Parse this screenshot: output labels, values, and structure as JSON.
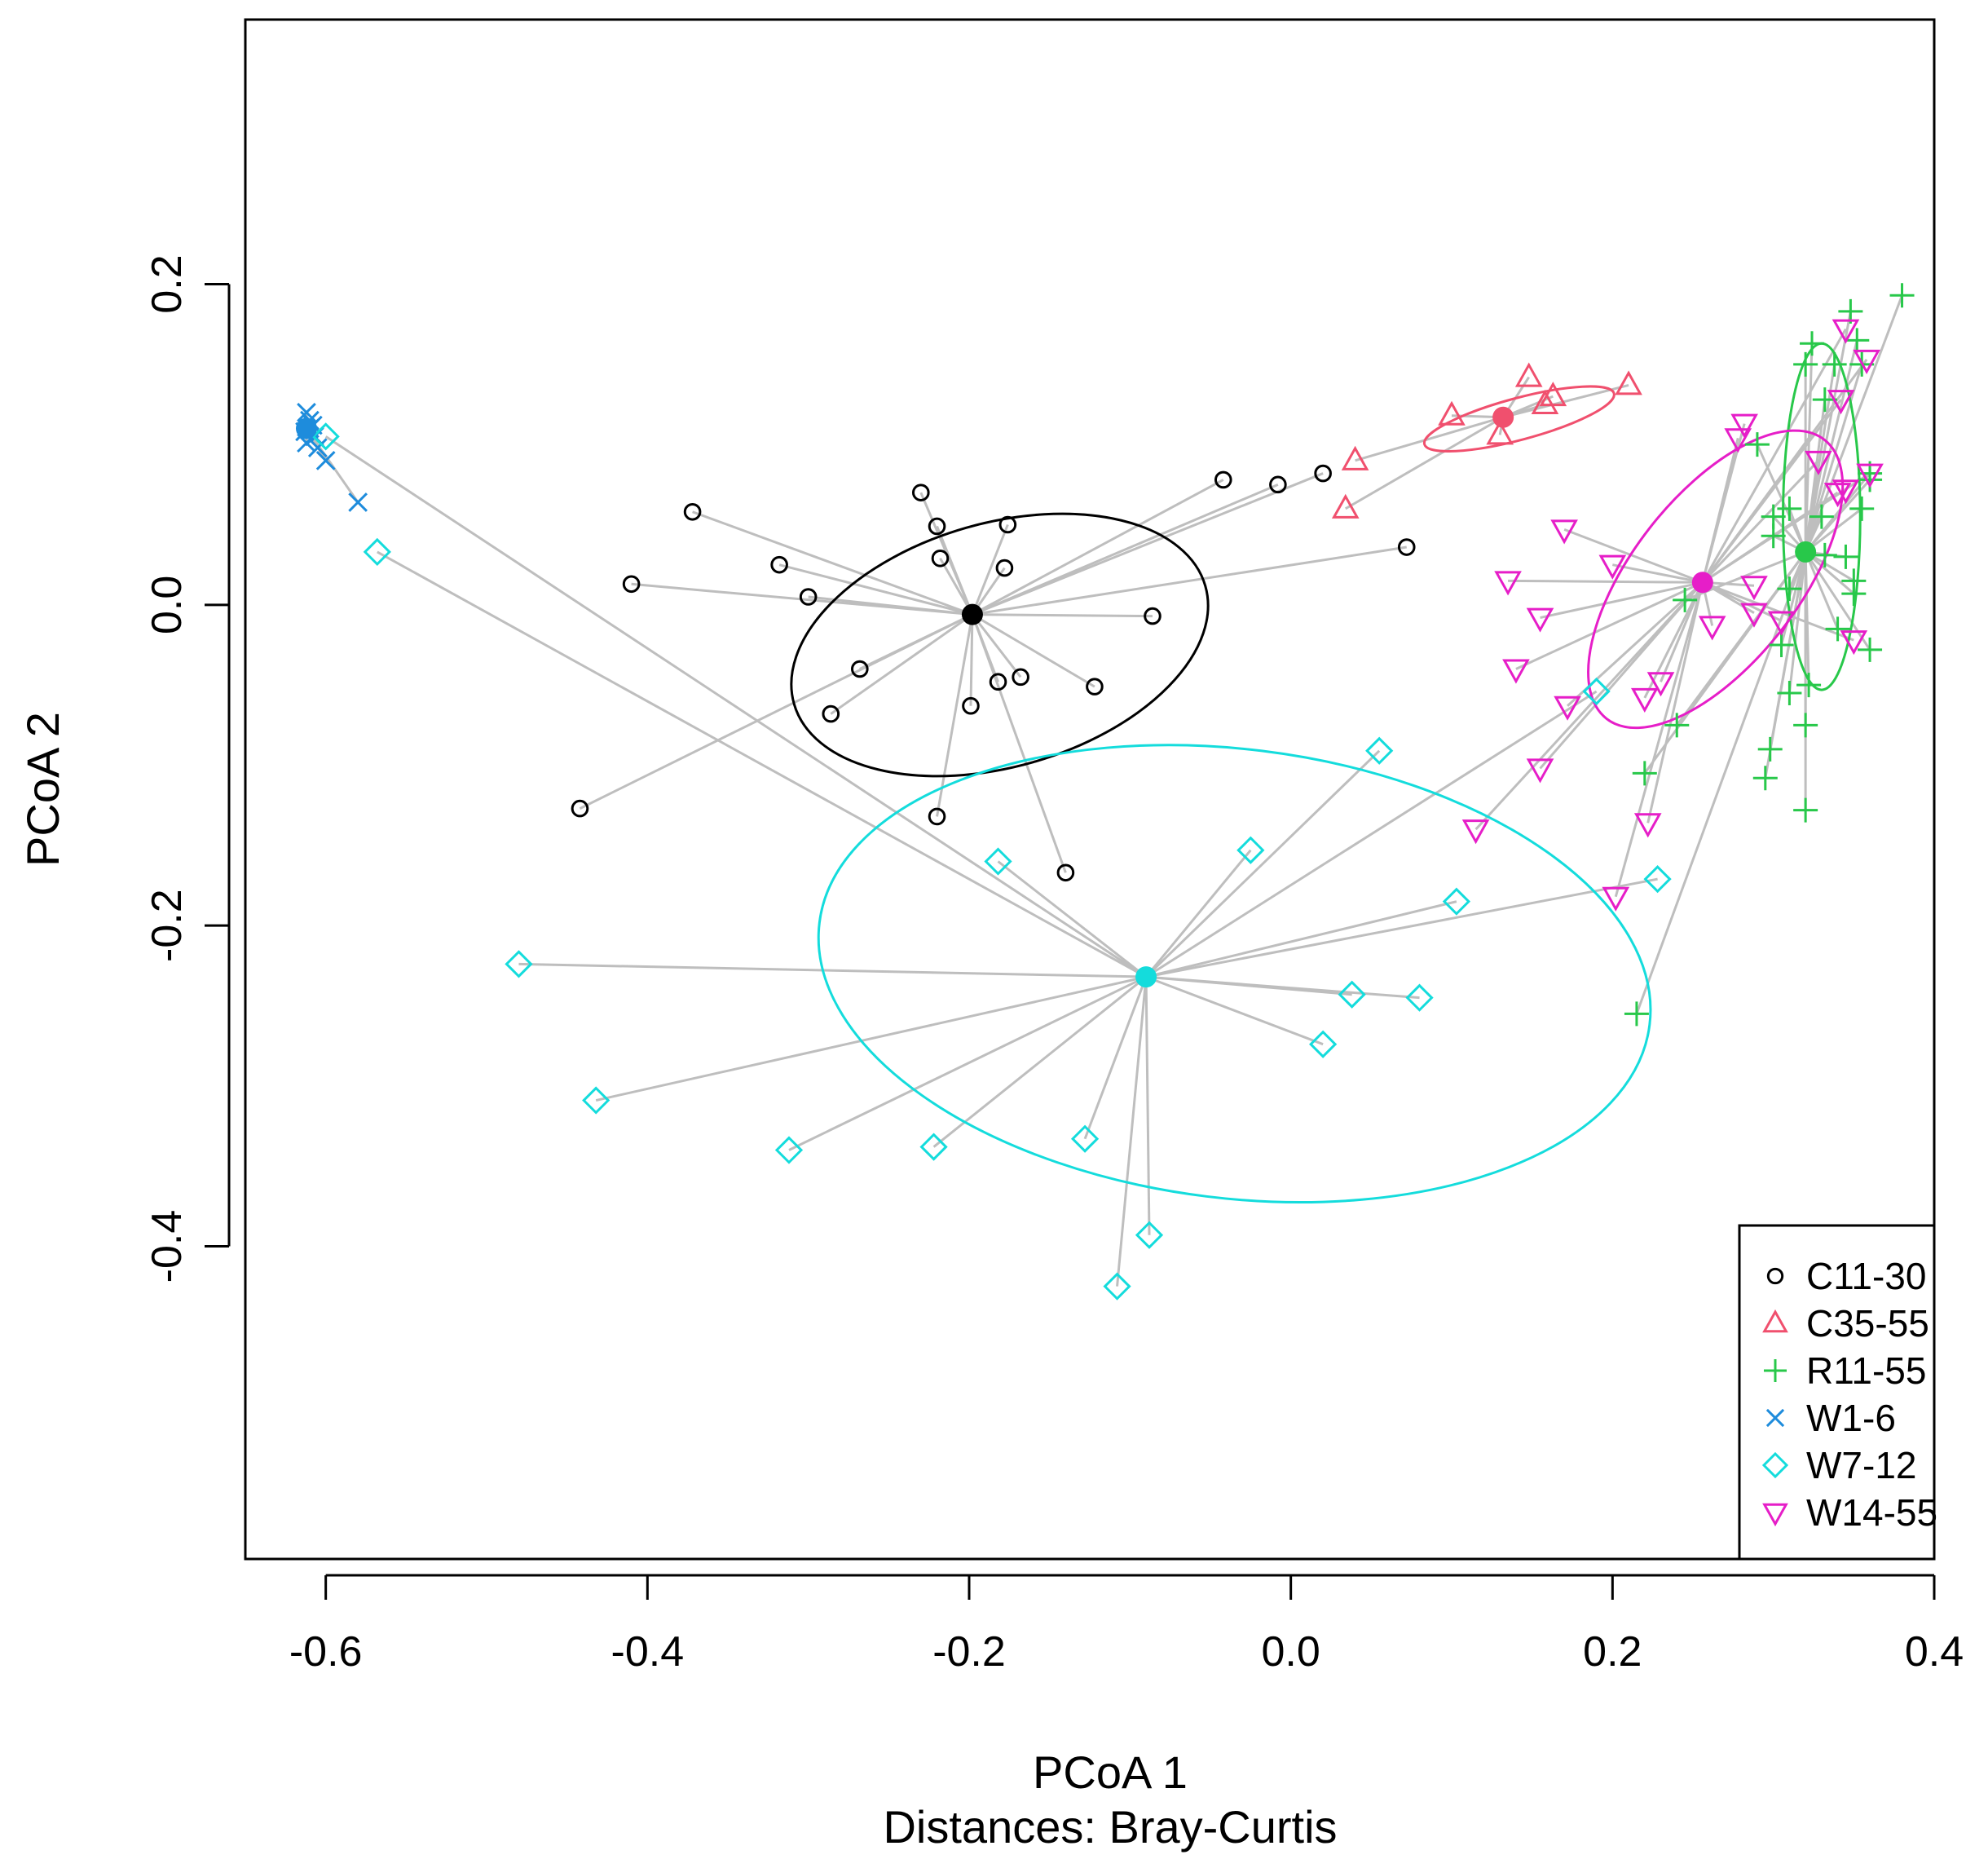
{
  "chart_data": {
    "type": "scatter",
    "subtype": "pcoa-betadisper",
    "xlabel": "PCoA 1",
    "subtitle": "Distances: Bray-Curtis",
    "ylabel": "PCoA 2",
    "xlim": [
      -0.65,
      0.4
    ],
    "ylim": [
      -0.595,
      0.365
    ],
    "x_ticks": [
      -0.6,
      -0.4,
      -0.2,
      0.0,
      0.2,
      0.4
    ],
    "x_tick_labels": [
      "-0.6",
      "-0.4",
      "-0.2",
      "0.0",
      "0.2",
      "0.4"
    ],
    "y_ticks": [
      -0.4,
      -0.2,
      0.0,
      0.2
    ],
    "y_tick_labels": [
      "-0.4",
      "-0.2",
      "0.0",
      "0.2"
    ],
    "grid": false,
    "legend_position": "bottom-right",
    "spider_color": "#bebebe",
    "series": [
      {
        "name": "C11-30",
        "shape": "circle",
        "color": "#000000",
        "centroid": [
          -0.198,
          -0.006
        ],
        "ellipse": {
          "cx": -0.181,
          "cy": -0.025,
          "rx": 0.133,
          "ry": 0.076,
          "angle": 16
        },
        "points": [
          [
            -0.372,
            0.058
          ],
          [
            -0.41,
            0.013
          ],
          [
            -0.3,
            0.005
          ],
          [
            -0.318,
            0.025
          ],
          [
            -0.23,
            0.07
          ],
          [
            -0.22,
            0.049
          ],
          [
            -0.218,
            0.029
          ],
          [
            -0.176,
            0.05
          ],
          [
            -0.178,
            0.023
          ],
          [
            -0.268,
            -0.04
          ],
          [
            -0.286,
            -0.068
          ],
          [
            -0.199,
            -0.063
          ],
          [
            -0.182,
            -0.048
          ],
          [
            -0.168,
            -0.045
          ],
          [
            -0.122,
            -0.051
          ],
          [
            -0.086,
            -0.007
          ],
          [
            -0.042,
            0.078
          ],
          [
            -0.008,
            0.075
          ],
          [
            0.02,
            0.082
          ],
          [
            0.072,
            0.036
          ],
          [
            -0.442,
            -0.127
          ],
          [
            -0.22,
            -0.132
          ],
          [
            -0.14,
            -0.167
          ]
        ]
      },
      {
        "name": "C35-55",
        "shape": "triangle",
        "color": "#f0506e",
        "centroid": [
          0.132,
          0.117
        ],
        "ellipse": {
          "cx": 0.142,
          "cy": 0.116,
          "rx": 0.061,
          "ry": 0.013,
          "angle": 15
        },
        "points": [
          [
            0.1,
            0.118
          ],
          [
            0.148,
            0.142
          ],
          [
            0.163,
            0.13
          ],
          [
            0.158,
            0.125
          ],
          [
            0.21,
            0.137
          ],
          [
            0.13,
            0.106
          ],
          [
            0.04,
            0.09
          ],
          [
            0.034,
            0.06
          ]
        ]
      },
      {
        "name": "R11-55",
        "shape": "plus",
        "color": "#28c84a",
        "centroid": [
          0.32,
          0.033
        ],
        "ellipse": {
          "cx": 0.33,
          "cy": 0.055,
          "rx": 0.024,
          "ry": 0.108,
          "angle": 0
        },
        "points": [
          [
            0.38,
            0.193
          ],
          [
            0.348,
            0.183
          ],
          [
            0.324,
            0.163
          ],
          [
            0.352,
            0.165
          ],
          [
            0.355,
            0.15
          ],
          [
            0.32,
            0.15
          ],
          [
            0.338,
            0.15
          ],
          [
            0.332,
            0.128
          ],
          [
            0.36,
            0.078
          ],
          [
            0.36,
            0.082
          ],
          [
            0.29,
            0.1
          ],
          [
            0.3,
            0.055
          ],
          [
            0.31,
            0.06
          ],
          [
            0.33,
            0.055
          ],
          [
            0.355,
            0.06
          ],
          [
            0.3,
            0.043
          ],
          [
            0.332,
            0.031
          ],
          [
            0.345,
            0.03
          ],
          [
            0.35,
            0.015
          ],
          [
            0.35,
            0.007
          ],
          [
            0.31,
            0.01
          ],
          [
            0.245,
            0.003
          ],
          [
            0.34,
            -0.015
          ],
          [
            0.36,
            -0.028
          ],
          [
            0.305,
            -0.025
          ],
          [
            0.322,
            -0.05
          ],
          [
            0.31,
            -0.055
          ],
          [
            0.24,
            -0.075
          ],
          [
            0.32,
            -0.075
          ],
          [
            0.298,
            -0.09
          ],
          [
            0.295,
            -0.108
          ],
          [
            0.22,
            -0.105
          ],
          [
            0.32,
            -0.128
          ],
          [
            0.215,
            -0.255
          ]
        ]
      },
      {
        "name": "W1-6",
        "shape": "cross",
        "color": "#1e8cdc",
        "centroid": [
          -0.612,
          0.11
        ],
        "points": [
          [
            -0.612,
            0.12
          ],
          [
            -0.61,
            0.115
          ],
          [
            -0.608,
            0.112
          ],
          [
            -0.613,
            0.108
          ],
          [
            -0.607,
            0.105
          ],
          [
            -0.612,
            0.101
          ],
          [
            -0.605,
            0.098
          ],
          [
            -0.61,
            0.11
          ],
          [
            -0.6,
            0.09
          ],
          [
            -0.58,
            0.064
          ]
        ]
      },
      {
        "name": "W7-12",
        "shape": "diamond",
        "color": "#14dcdc",
        "centroid": [
          -0.09,
          -0.232
        ],
        "ellipse": {
          "cx": -0.035,
          "cy": -0.23,
          "rx": 0.26,
          "ry": 0.14,
          "angle": -7
        },
        "points": [
          [
            -0.6,
            0.105
          ],
          [
            -0.568,
            0.033
          ],
          [
            -0.48,
            -0.224
          ],
          [
            -0.432,
            -0.309
          ],
          [
            -0.312,
            -0.34
          ],
          [
            -0.222,
            -0.338
          ],
          [
            -0.182,
            -0.16
          ],
          [
            -0.128,
            -0.333
          ],
          [
            -0.088,
            -0.393
          ],
          [
            -0.108,
            -0.425
          ],
          [
            -0.025,
            -0.153
          ],
          [
            0.02,
            -0.274
          ],
          [
            0.038,
            -0.243
          ],
          [
            0.08,
            -0.245
          ],
          [
            0.103,
            -0.185
          ],
          [
            0.055,
            -0.091
          ],
          [
            0.19,
            -0.054
          ],
          [
            0.228,
            -0.171
          ]
        ]
      },
      {
        "name": "W14-55",
        "shape": "triangle-down",
        "color": "#e61ec8",
        "centroid": [
          0.256,
          0.014
        ],
        "ellipse": {
          "cx": 0.264,
          "cy": 0.016,
          "rx": 0.11,
          "ry": 0.052,
          "angle": 52
        },
        "points": [
          [
            0.345,
            0.172
          ],
          [
            0.358,
            0.153
          ],
          [
            0.342,
            0.128
          ],
          [
            0.282,
            0.113
          ],
          [
            0.278,
            0.104
          ],
          [
            0.328,
            0.09
          ],
          [
            0.36,
            0.082
          ],
          [
            0.345,
            0.072
          ],
          [
            0.34,
            0.07
          ],
          [
            0.17,
            0.047
          ],
          [
            0.2,
            0.025
          ],
          [
            0.135,
            0.015
          ],
          [
            0.155,
            -0.008
          ],
          [
            0.288,
            0.012
          ],
          [
            0.305,
            -0.01
          ],
          [
            0.288,
            -0.005
          ],
          [
            0.262,
            -0.013
          ],
          [
            0.35,
            -0.022
          ],
          [
            0.14,
            -0.04
          ],
          [
            0.23,
            -0.048
          ],
          [
            0.172,
            -0.063
          ],
          [
            0.22,
            -0.058
          ],
          [
            0.155,
            -0.102
          ],
          [
            0.222,
            -0.136
          ],
          [
            0.115,
            -0.14
          ],
          [
            0.202,
            -0.182
          ]
        ]
      }
    ]
  }
}
